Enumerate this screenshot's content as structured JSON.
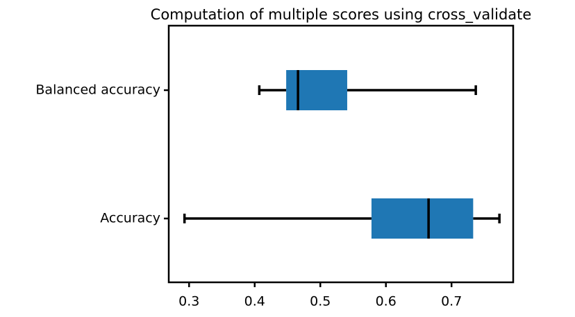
{
  "chart_data": {
    "type": "boxplot",
    "title": "Computation of multiple scores using cross_validate",
    "categories": [
      "Balanced accuracy",
      "Accuracy"
    ],
    "boxes": [
      {
        "min": 0.407,
        "q1": 0.448,
        "median": 0.466,
        "q3": 0.541,
        "max": 0.737
      },
      {
        "min": 0.293,
        "q1": 0.578,
        "median": 0.665,
        "q3": 0.733,
        "max": 0.773
      }
    ],
    "color": "#1f77b4",
    "xlim": [
      0.269,
      0.794
    ],
    "xticks": [
      0.3,
      0.4,
      0.5,
      0.6,
      0.7
    ]
  }
}
